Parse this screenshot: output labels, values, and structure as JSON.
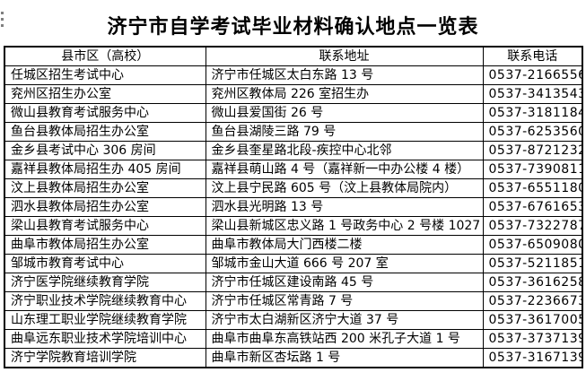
{
  "page": {
    "title": "济宁市自学考试毕业材料确认地点一览表"
  },
  "decoration": {
    "corner_dots_color": "#808080",
    "border_color": "#000000",
    "background_color": "#ffffff",
    "text_color": "#000000"
  },
  "table": {
    "headers": {
      "district": "县市区（高校）",
      "address": "联系地址",
      "phone": "联系电话"
    },
    "rows": [
      {
        "district": "任城区招生考试中心",
        "address": "济宁市任城区太白东路 13 号",
        "phone": "0537-2166556"
      },
      {
        "district": "兖州区招生办公室",
        "address": "兖州区教体局 226 室招生办",
        "phone": "0537-3413543"
      },
      {
        "district": "微山县教育考试服务中心",
        "address": "微山县爱国街 26 号",
        "phone": "0537-3181184"
      },
      {
        "district": "鱼台县教体局招生办公室",
        "address": "鱼台县湖陵三路 79 号",
        "phone": "0537-6253560"
      },
      {
        "district": "金乡县考试中心 306 房间",
        "address": "金乡县奎星路北段-疾控中心北邻",
        "phone": "0537-8721232"
      },
      {
        "district": "嘉祥县教体局招生办 405 房间",
        "address": "嘉祥县萌山路 4 号（嘉祥新一中办公楼 4 楼）",
        "phone": "0537-7390811"
      },
      {
        "district": "汶上县教体局招生办公室",
        "address": "汶上县宁民路 605 号（汶上县教体局院内）",
        "phone": "0537-6551180"
      },
      {
        "district": "泗水县教体局招生办公室",
        "address": "泗水县光明路 13 号",
        "phone": "0537-6761653"
      },
      {
        "district": "梁山县教育考试服务中心",
        "address": "梁山县新城区忠义路 1 号政务中心 2 号楼 1027 室",
        "phone": "0537-7322787"
      },
      {
        "district": "曲阜市教体局招生办公室",
        "address": "曲阜市教体局大门西楼二楼",
        "phone": "0537-6509080"
      },
      {
        "district": "邹城市教育考试中心",
        "address": "邹城市金山大道 666 号 207 室",
        "phone": "0537-5211851"
      },
      {
        "district": "济宁医学院继续教育学院",
        "address": "济宁市任城区建设南路 45 号",
        "phone": "0537-3616258"
      },
      {
        "district": "济宁职业技术学院继续教育中心",
        "address": "济宁市任城区常青路 7 号",
        "phone": "0537-2236673"
      },
      {
        "district": "山东理工职业学院继续教育学院",
        "address": "济宁市太白湖新区济宁大道 37 号",
        "phone": "0537-3617005"
      },
      {
        "district": "曲阜远东职业技术学院培训中心",
        "address": "曲阜市曲阜东高铁站西 200 米孔子大道 1 号",
        "phone": "0537-3737139"
      },
      {
        "district": "济宁学院教育培训学院",
        "address": "曲阜市新区杏坛路 1 号",
        "phone": "0537-3167139"
      }
    ]
  }
}
